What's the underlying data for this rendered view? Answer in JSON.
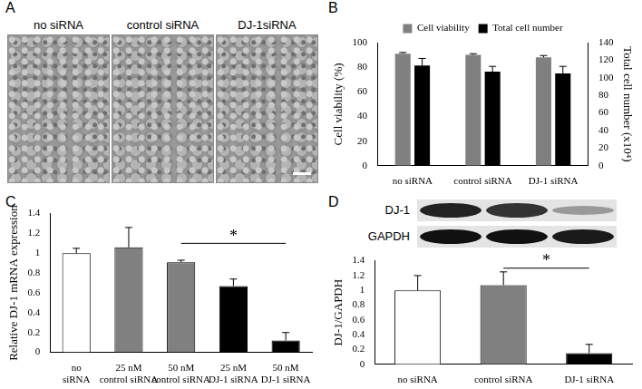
{
  "figure": {
    "panel_a": {
      "letter": "A",
      "images": [
        {
          "label": "no siRNA"
        },
        {
          "label": "control siRNA"
        },
        {
          "label": "DJ-1siRNA"
        }
      ]
    },
    "blot": {
      "letter": "D",
      "rows": [
        "DJ-1",
        "GAPDH"
      ]
    }
  },
  "chart_data": [
    {
      "panel": "B",
      "type": "bar",
      "categories": [
        "no siRNA",
        "control siRNA",
        "DJ-1 siRNA"
      ],
      "series": [
        {
          "name": "Cell viability",
          "color": "#808080",
          "values": [
            91,
            90,
            88
          ],
          "errors": [
            1,
            1,
            1.5
          ]
        },
        {
          "name": "Total cell number",
          "color": "#000000",
          "axis": "y2",
          "values": [
            114,
            107,
            105
          ],
          "errors": [
            8,
            6,
            8
          ]
        }
      ],
      "y_label": "Cell viability (%)",
      "y2_label": "Total cell number (x10⁴)",
      "ylim": [
        0,
        100
      ],
      "yticks": [
        0,
        20,
        40,
        60,
        80,
        100
      ],
      "y2lim": [
        0,
        140
      ],
      "y2ticks": [
        0,
        20,
        40,
        60,
        80,
        100,
        120,
        140
      ],
      "grid": false,
      "legend": "top"
    },
    {
      "panel": "C",
      "type": "bar",
      "categories": [
        [
          "no",
          "siRNA"
        ],
        [
          "25 nM",
          "control siRNA"
        ],
        [
          "50 nM",
          "control siRNA"
        ],
        [
          "25 nM",
          "DJ-1 siRNA"
        ],
        [
          "50 nM",
          "DJ-1 siRNA"
        ]
      ],
      "values": [
        1.0,
        1.06,
        0.91,
        0.67,
        0.12
      ],
      "errors": [
        0.05,
        0.2,
        0.02,
        0.07,
        0.08
      ],
      "colors": [
        "#ffffff",
        "#808080",
        "#808080",
        "#000000",
        "#000000"
      ],
      "y_label": "Relative DJ-1 mRNA expression",
      "ylim": [
        0,
        1.4
      ],
      "yticks": [
        0,
        0.2,
        0.4,
        0.6,
        0.8,
        1,
        1.2,
        1.4
      ],
      "grid": false,
      "annotations": [
        {
          "text": "*",
          "from": 2,
          "to": 4,
          "y": 1.1
        }
      ]
    },
    {
      "panel": "D",
      "type": "bar",
      "categories": [
        "no siRNA",
        "control siRNA",
        "DJ-1 siRNA"
      ],
      "values": [
        1.0,
        1.07,
        0.15
      ],
      "errors": [
        0.2,
        0.18,
        0.12
      ],
      "colors": [
        "#ffffff",
        "#808080",
        "#000000"
      ],
      "y_label": "DJ-1/GAPDH",
      "ylim": [
        0,
        1.4
      ],
      "yticks": [
        0,
        0.2,
        0.4,
        0.6,
        0.8,
        1,
        1.2,
        1.4
      ],
      "grid": false,
      "annotations": [
        {
          "text": "*",
          "from": 1,
          "to": 2,
          "y": 1.3
        }
      ]
    }
  ]
}
